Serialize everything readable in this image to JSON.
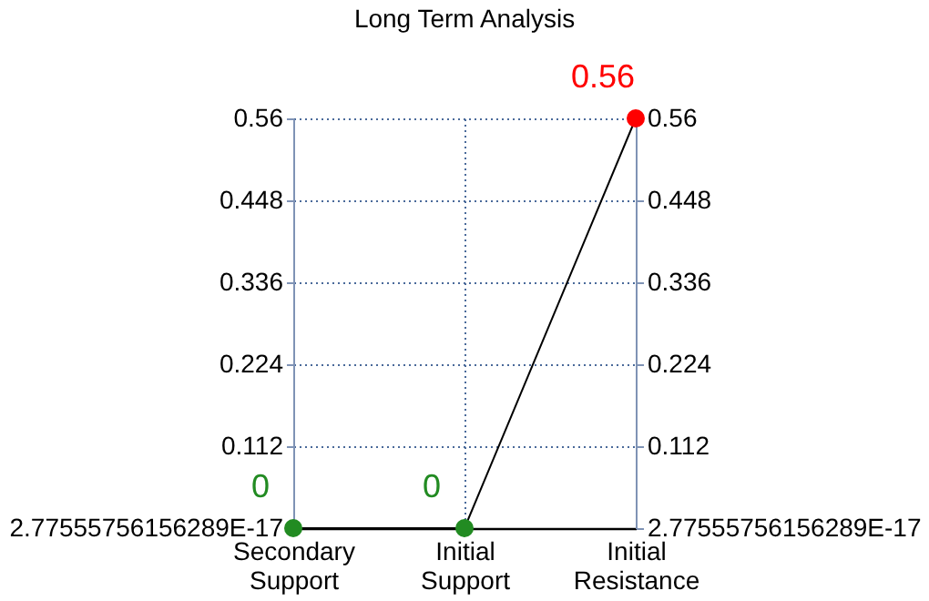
{
  "chart_data": {
    "type": "line",
    "title": "Long Term Analysis",
    "categories": [
      "Secondary\nSupport",
      "Initial\nSupport",
      "Initial\nResistance"
    ],
    "series": [
      {
        "color": "#000000",
        "colors": [
          "#228b22",
          "#228b22",
          "#ff0000"
        ],
        "values": [
          0,
          0,
          0.56
        ]
      }
    ],
    "ylim": [
      0,
      0.56
    ],
    "yticks": [
      {
        "value": 0,
        "label": "2.77555756156289E-17"
      },
      0.112,
      0.224,
      0.336,
      0.448,
      0.56
    ],
    "y2lim": [
      0,
      0.56
    ],
    "y2ticks": [
      {
        "value": 0,
        "label": "2.77555756156289E-17"
      },
      0.112,
      0.224,
      0.336,
      0.448,
      0.56
    ],
    "grid": true,
    "marker": "circle",
    "line_style": "solid",
    "data_labels": true
  }
}
